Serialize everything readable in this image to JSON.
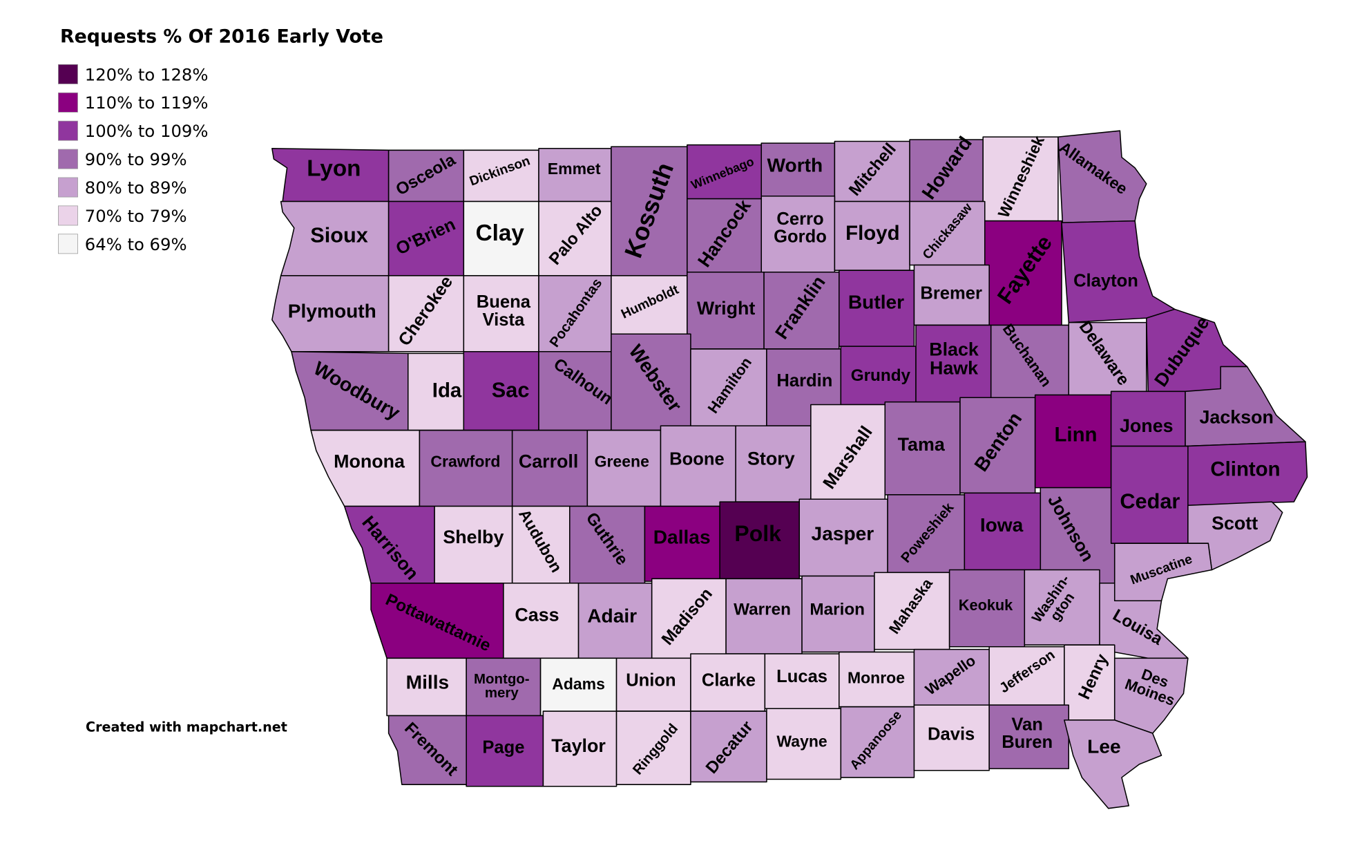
{
  "title": "Requests % Of 2016 Early Vote",
  "credit": "Created with mapchart.net",
  "legend": [
    {
      "label": "120% to 128%",
      "color": "#550052"
    },
    {
      "label": "110% to 119%",
      "color": "#8b0080"
    },
    {
      "label": "100% to 109%",
      "color": "#90369e"
    },
    {
      "label": "90% to 99%",
      "color": "#a06aad"
    },
    {
      "label": "80% to 89%",
      "color": "#c6a0cf"
    },
    {
      "label": "70% to 79%",
      "color": "#ebd3e9"
    },
    {
      "label": "64% to 69%",
      "color": "#f5f5f5"
    }
  ],
  "counties": [
    {
      "name": "Lyon",
      "bin": "100% to 109%"
    },
    {
      "name": "Osceola",
      "bin": "90% to 99%"
    },
    {
      "name": "Dickinson",
      "bin": "70% to 79%"
    },
    {
      "name": "Emmet",
      "bin": "80% to 89%"
    },
    {
      "name": "Kossuth",
      "bin": "90% to 99%"
    },
    {
      "name": "Winnebago",
      "bin": "100% to 109%"
    },
    {
      "name": "Worth",
      "bin": "90% to 99%"
    },
    {
      "name": "Mitchell",
      "bin": "80% to 89%"
    },
    {
      "name": "Howard",
      "bin": "90% to 99%"
    },
    {
      "name": "Winneshiek",
      "bin": "70% to 79%"
    },
    {
      "name": "Allamakee",
      "bin": "90% to 99%"
    },
    {
      "name": "Sioux",
      "bin": "80% to 89%"
    },
    {
      "name": "O'Brien",
      "bin": "100% to 109%"
    },
    {
      "name": "Clay",
      "bin": "64% to 69%"
    },
    {
      "name": "Palo Alto",
      "bin": "70% to 79%"
    },
    {
      "name": "Hancock",
      "bin": "90% to 99%"
    },
    {
      "name": "Cerro Gordo",
      "label": [
        "Cerro",
        "Gordo"
      ],
      "bin": "80% to 89%"
    },
    {
      "name": "Floyd",
      "bin": "80% to 89%"
    },
    {
      "name": "Chickasaw",
      "bin": "80% to 89%"
    },
    {
      "name": "Fayette",
      "bin": "110% to 119%"
    },
    {
      "name": "Clayton",
      "bin": "100% to 109%"
    },
    {
      "name": "Plymouth",
      "bin": "80% to 89%"
    },
    {
      "name": "Cherokee",
      "bin": "70% to 79%"
    },
    {
      "name": "Buena Vista",
      "label": [
        "Buena",
        "Vista"
      ],
      "bin": "70% to 79%"
    },
    {
      "name": "Pocahontas",
      "bin": "80% to 89%"
    },
    {
      "name": "Humboldt",
      "bin": "70% to 79%"
    },
    {
      "name": "Wright",
      "bin": "90% to 99%"
    },
    {
      "name": "Franklin",
      "bin": "90% to 99%"
    },
    {
      "name": "Butler",
      "bin": "100% to 109%"
    },
    {
      "name": "Bremer",
      "bin": "80% to 89%"
    },
    {
      "name": "Woodbury",
      "bin": "90% to 99%"
    },
    {
      "name": "Ida",
      "bin": "70% to 79%"
    },
    {
      "name": "Sac",
      "bin": "100% to 109%"
    },
    {
      "name": "Calhoun",
      "bin": "90% to 99%"
    },
    {
      "name": "Webster",
      "bin": "90% to 99%"
    },
    {
      "name": "Hamilton",
      "bin": "80% to 89%"
    },
    {
      "name": "Hardin",
      "bin": "90% to 99%"
    },
    {
      "name": "Grundy",
      "bin": "100% to 109%"
    },
    {
      "name": "Black Hawk",
      "label": [
        "Black",
        "Hawk"
      ],
      "bin": "100% to 109%"
    },
    {
      "name": "Buchanan",
      "bin": "90% to 99%"
    },
    {
      "name": "Delaware",
      "bin": "80% to 89%"
    },
    {
      "name": "Dubuque",
      "bin": "100% to 109%"
    },
    {
      "name": "Monona",
      "bin": "70% to 79%"
    },
    {
      "name": "Crawford",
      "bin": "90% to 99%"
    },
    {
      "name": "Carroll",
      "bin": "90% to 99%"
    },
    {
      "name": "Greene",
      "bin": "80% to 89%"
    },
    {
      "name": "Boone",
      "bin": "80% to 89%"
    },
    {
      "name": "Story",
      "bin": "80% to 89%"
    },
    {
      "name": "Marshall",
      "bin": "70% to 79%"
    },
    {
      "name": "Tama",
      "bin": "90% to 99%"
    },
    {
      "name": "Benton",
      "bin": "90% to 99%"
    },
    {
      "name": "Linn",
      "bin": "110% to 119%"
    },
    {
      "name": "Jones",
      "bin": "100% to 109%"
    },
    {
      "name": "Jackson",
      "bin": "90% to 99%"
    },
    {
      "name": "Clinton",
      "bin": "100% to 109%"
    },
    {
      "name": "Harrison",
      "bin": "100% to 109%"
    },
    {
      "name": "Shelby",
      "bin": "70% to 79%"
    },
    {
      "name": "Audubon",
      "bin": "70% to 79%"
    },
    {
      "name": "Guthrie",
      "bin": "90% to 99%"
    },
    {
      "name": "Dallas",
      "bin": "110% to 119%"
    },
    {
      "name": "Polk",
      "bin": "120% to 128%"
    },
    {
      "name": "Jasper",
      "bin": "80% to 89%"
    },
    {
      "name": "Poweshiek",
      "bin": "90% to 99%"
    },
    {
      "name": "Iowa",
      "bin": "100% to 109%"
    },
    {
      "name": "Johnson",
      "bin": "90% to 99%"
    },
    {
      "name": "Cedar",
      "bin": "100% to 109%"
    },
    {
      "name": "Scott",
      "bin": "80% to 89%"
    },
    {
      "name": "Muscatine",
      "bin": "80% to 89%"
    },
    {
      "name": "Pottawattamie",
      "bin": "110% to 119%"
    },
    {
      "name": "Cass",
      "bin": "70% to 79%"
    },
    {
      "name": "Adair",
      "bin": "80% to 89%"
    },
    {
      "name": "Madison",
      "bin": "70% to 79%"
    },
    {
      "name": "Warren",
      "bin": "80% to 89%"
    },
    {
      "name": "Marion",
      "bin": "80% to 89%"
    },
    {
      "name": "Mahaska",
      "bin": "70% to 79%"
    },
    {
      "name": "Keokuk",
      "bin": "90% to 99%"
    },
    {
      "name": "Washington",
      "label": [
        "Washin-",
        "gton"
      ],
      "bin": "80% to 89%"
    },
    {
      "name": "Louisa",
      "bin": "80% to 89%"
    },
    {
      "name": "Mills",
      "bin": "70% to 79%"
    },
    {
      "name": "Montgomery",
      "label": [
        "Montgo-",
        "mery"
      ],
      "bin": "90% to 99%"
    },
    {
      "name": "Adams",
      "bin": "64% to 69%"
    },
    {
      "name": "Union",
      "bin": "70% to 79%"
    },
    {
      "name": "Clarke",
      "bin": "70% to 79%"
    },
    {
      "name": "Lucas",
      "bin": "70% to 79%"
    },
    {
      "name": "Monroe",
      "bin": "70% to 79%"
    },
    {
      "name": "Wapello",
      "bin": "80% to 89%"
    },
    {
      "name": "Jefferson",
      "bin": "70% to 79%"
    },
    {
      "name": "Henry",
      "bin": "70% to 79%"
    },
    {
      "name": "Des Moines",
      "label": [
        "Des",
        "Moines"
      ],
      "bin": "80% to 89%"
    },
    {
      "name": "Fremont",
      "bin": "90% to 99%"
    },
    {
      "name": "Page",
      "bin": "100% to 109%"
    },
    {
      "name": "Taylor",
      "bin": "70% to 79%"
    },
    {
      "name": "Ringgold",
      "bin": "70% to 79%"
    },
    {
      "name": "Decatur",
      "bin": "80% to 89%"
    },
    {
      "name": "Wayne",
      "bin": "70% to 79%"
    },
    {
      "name": "Appanoose",
      "bin": "80% to 89%"
    },
    {
      "name": "Davis",
      "bin": "70% to 79%"
    },
    {
      "name": "Van Buren",
      "label": [
        "Van",
        "Buren"
      ],
      "bin": "90% to 99%"
    },
    {
      "name": "Lee",
      "bin": "80% to 89%"
    }
  ]
}
